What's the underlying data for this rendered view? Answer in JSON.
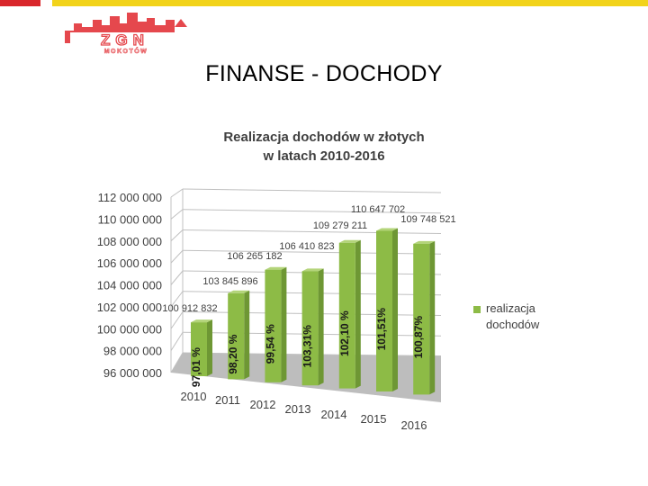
{
  "slide": {
    "title": "FINANSE - DOCHODY",
    "logo_text": "ZGN",
    "logo_subtext": "MOKOTÓW"
  },
  "colors": {
    "bar_front": "#8dbb46",
    "bar_side": "#6e9734",
    "bar_top": "#b3d479",
    "floor": "#bdbdbd",
    "grid": "#c0c0c0",
    "text": "#404040",
    "accent_red": "#d9262b",
    "accent_yellow": "#f2d31b",
    "logo_red": "#e5484d"
  },
  "chart_data": {
    "type": "bar",
    "title_lines": [
      "Realizacja dochodów w złotych",
      "w latach 2010-2016"
    ],
    "categories": [
      "2010",
      "2011",
      "2012",
      "2013",
      "2014",
      "2015",
      "2016"
    ],
    "series": [
      {
        "name": "realizacja dochodów",
        "values": [
          100912832,
          103845896,
          106265182,
          106410823,
          109279211,
          110647702,
          109748521
        ],
        "value_labels": [
          "100 912 832",
          "103 845 896",
          "106 265 182",
          "106 410 823",
          "109 279 211",
          "110 647 702",
          "109 748 521"
        ],
        "percent_labels": [
          "97,01 %",
          "98,20 %",
          "99,54 %",
          "103,31%",
          "102,10 %",
          "101,51%",
          "100,87%"
        ]
      }
    ],
    "ylim": [
      96000000,
      112000000
    ],
    "yticks": [
      "96 000 000",
      "98 000 000",
      "100 000 000",
      "102 000 000",
      "104 000 000",
      "106 000 000",
      "108 000 000",
      "110 000 000",
      "112 000 000"
    ],
    "grid": true,
    "legend_position": "right",
    "xlabel": "",
    "ylabel": ""
  }
}
